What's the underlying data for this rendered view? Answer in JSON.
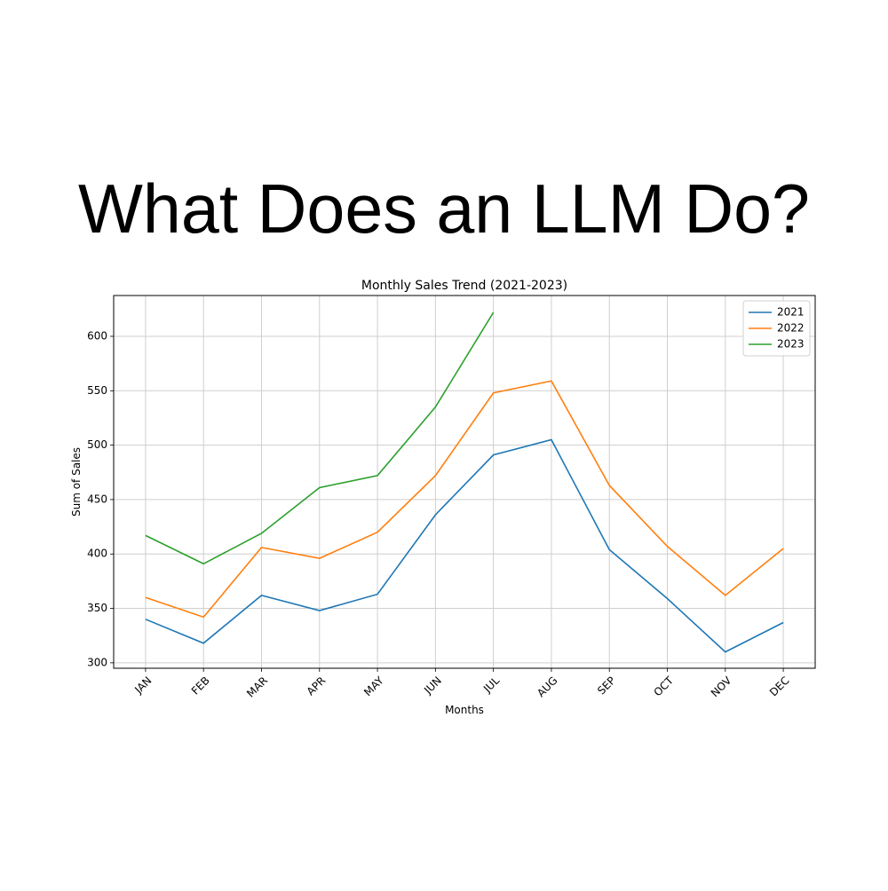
{
  "heading": "What Does an LLM Do?",
  "chart_data": {
    "type": "line",
    "title": "Monthly Sales Trend (2021-2023)",
    "xlabel": "Months",
    "ylabel": "Sum of Sales",
    "categories": [
      "JAN",
      "FEB",
      "MAR",
      "APR",
      "MAY",
      "JUN",
      "JUL",
      "AUG",
      "SEP",
      "OCT",
      "NOV",
      "DEC"
    ],
    "series": [
      {
        "name": "2021",
        "color": "#1f77b4",
        "values": [
          340,
          318,
          362,
          348,
          363,
          436,
          491,
          505,
          404,
          359,
          310,
          337
        ]
      },
      {
        "name": "2022",
        "color": "#ff7f0e",
        "values": [
          360,
          342,
          406,
          396,
          420,
          472,
          548,
          559,
          463,
          407,
          362,
          405
        ]
      },
      {
        "name": "2023",
        "color": "#2ca02c",
        "values": [
          417,
          391,
          419,
          461,
          472,
          535,
          622,
          null,
          null,
          null,
          null,
          null
        ]
      }
    ],
    "ylim": [
      295,
      637.5
    ],
    "yticks": [
      300,
      350,
      400,
      450,
      500,
      550,
      600
    ],
    "grid": true,
    "legend": "upper right"
  }
}
